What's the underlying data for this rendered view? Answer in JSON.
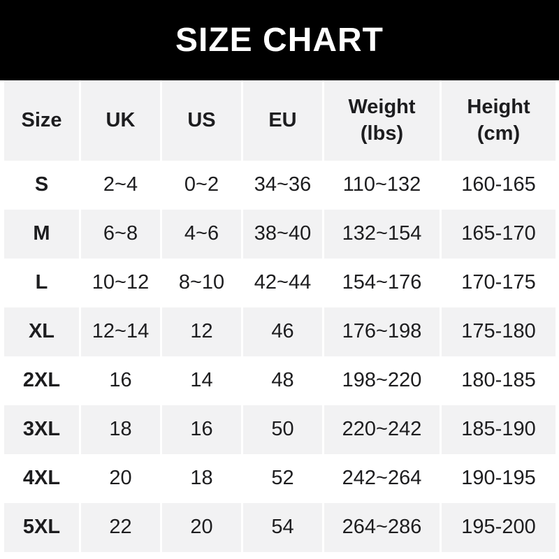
{
  "banner": {
    "title": "SIZE CHART",
    "bg_color": "#000000",
    "text_color": "#ffffff"
  },
  "table": {
    "colors": {
      "header_bg": "#f2f2f3",
      "alt_row_bg": "#f2f2f3",
      "row_bg": "#ffffff",
      "text": "#1d1d1f",
      "separator": "#ffffff"
    },
    "headers": {
      "size": "Size",
      "uk": "UK",
      "us": "US",
      "eu": "EU",
      "weight": "Weight\n(lbs)",
      "height": "Height\n(cm)"
    },
    "rows": [
      {
        "size": "S",
        "uk": "2~4",
        "us": "0~2",
        "eu": "34~36",
        "weight": "110~132",
        "height": "160-165"
      },
      {
        "size": "M",
        "uk": "6~8",
        "us": "4~6",
        "eu": "38~40",
        "weight": "132~154",
        "height": "165-170"
      },
      {
        "size": "L",
        "uk": "10~12",
        "us": "8~10",
        "eu": "42~44",
        "weight": "154~176",
        "height": "170-175"
      },
      {
        "size": "XL",
        "uk": "12~14",
        "us": "12",
        "eu": "46",
        "weight": "176~198",
        "height": "175-180"
      },
      {
        "size": "2XL",
        "uk": "16",
        "us": "14",
        "eu": "48",
        "weight": "198~220",
        "height": "180-185"
      },
      {
        "size": "3XL",
        "uk": "18",
        "us": "16",
        "eu": "50",
        "weight": "220~242",
        "height": "185-190"
      },
      {
        "size": "4XL",
        "uk": "20",
        "us": "18",
        "eu": "52",
        "weight": "242~264",
        "height": "190-195"
      },
      {
        "size": "5XL",
        "uk": "22",
        "us": "20",
        "eu": "54",
        "weight": "264~286",
        "height": "195-200"
      }
    ]
  }
}
